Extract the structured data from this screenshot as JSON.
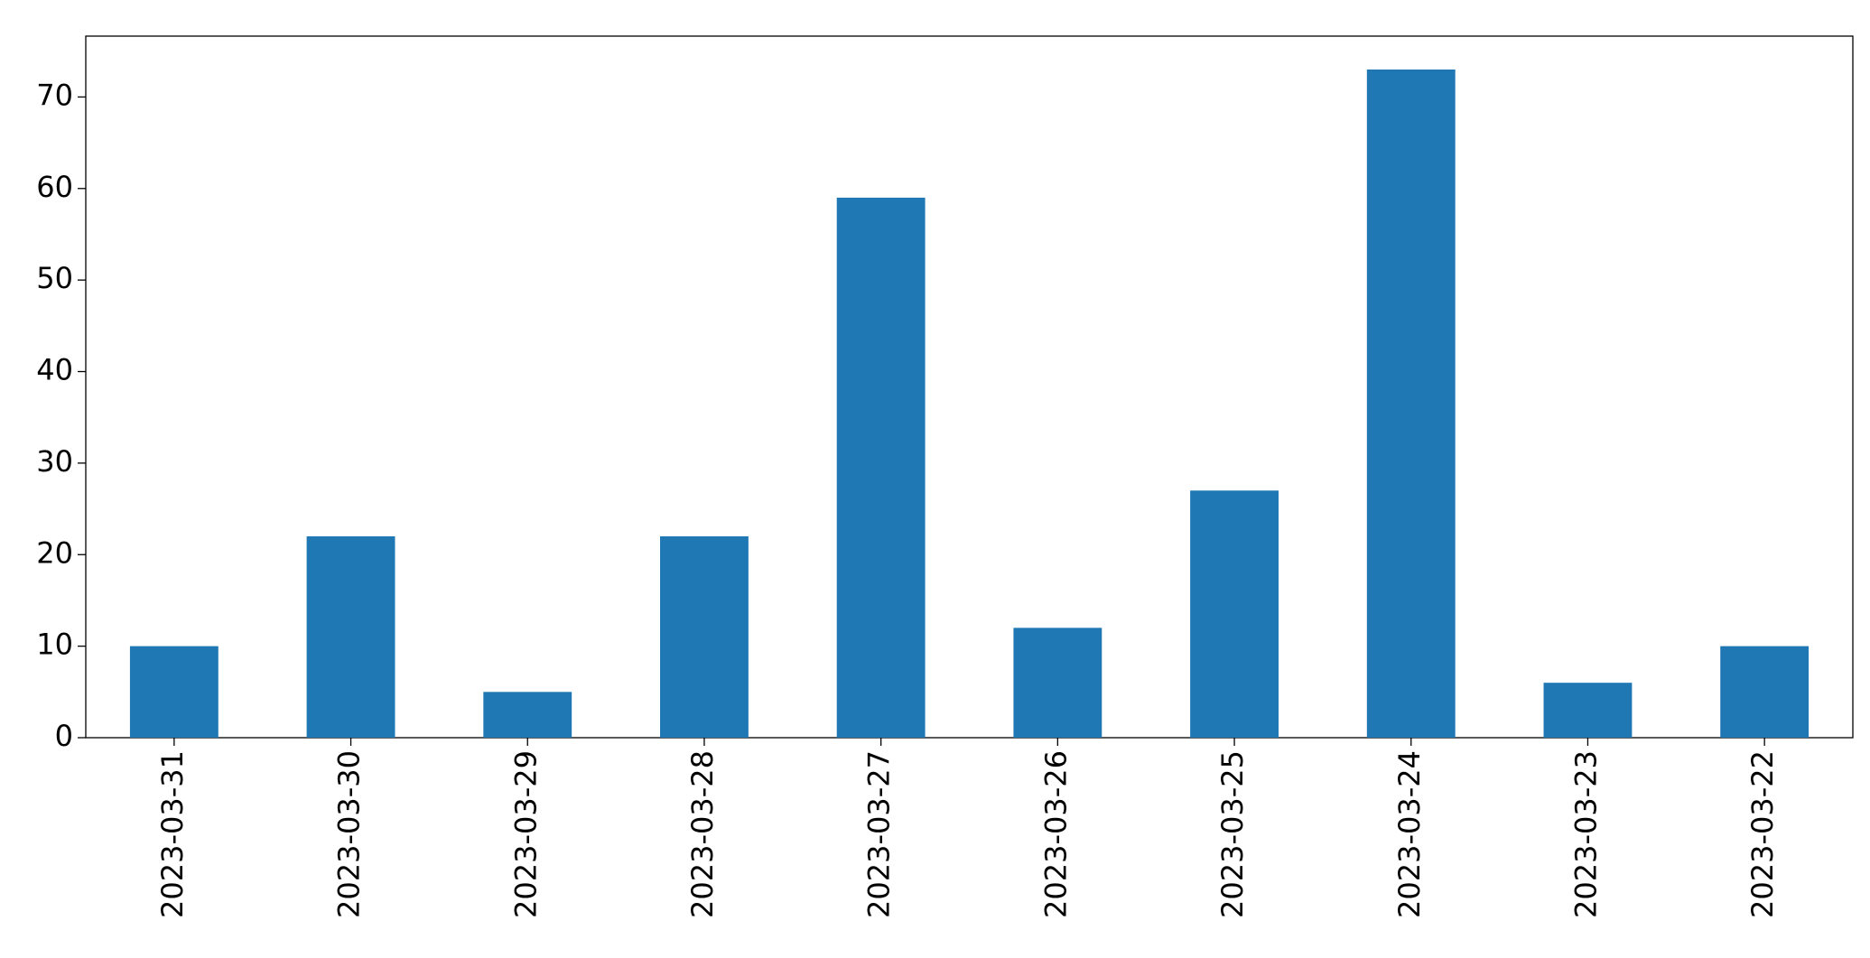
{
  "chart_data": {
    "type": "bar",
    "categories": [
      "2023-03-31",
      "2023-03-30",
      "2023-03-29",
      "2023-03-28",
      "2023-03-27",
      "2023-03-26",
      "2023-03-25",
      "2023-03-24",
      "2023-03-23",
      "2023-03-22"
    ],
    "values": [
      10,
      22,
      5,
      22,
      59,
      12,
      27,
      73,
      6,
      10
    ],
    "color": "#1f77b4",
    "ylim": [
      0,
      76.65
    ],
    "yticks": [
      0,
      10,
      20,
      30,
      40,
      50,
      60,
      70
    ],
    "grid": false
  }
}
